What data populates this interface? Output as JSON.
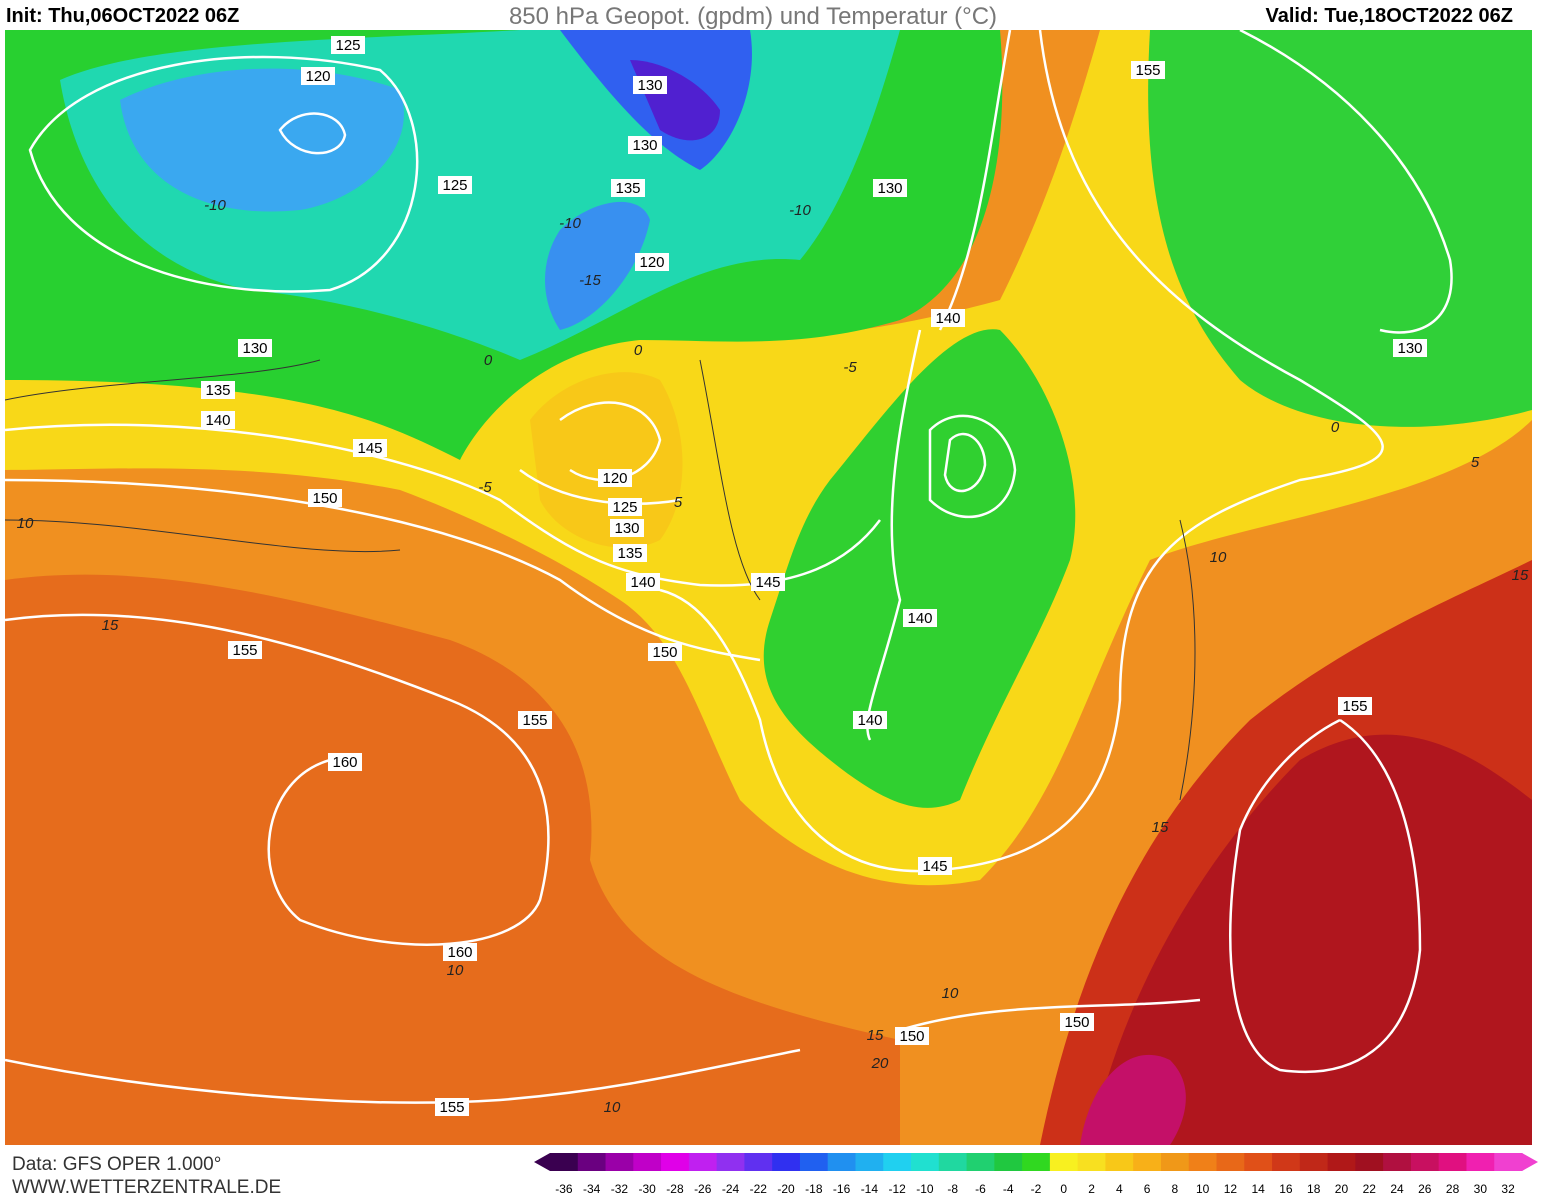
{
  "header": {
    "init": "Init: Thu,06OCT2022 06Z",
    "title": "850 hPa Geopot. (gpdm) und Temperatur (°C)",
    "valid": "Valid: Tue,18OCT2022 06Z"
  },
  "map": {
    "geopotential_labels": [
      125,
      120,
      130,
      130,
      135,
      125,
      130,
      120,
      155,
      140,
      130,
      135,
      140,
      145,
      150,
      120,
      125,
      130,
      135,
      140,
      145,
      140,
      150,
      155,
      155,
      140,
      160,
      155,
      145,
      160,
      150,
      150,
      155,
      130
    ],
    "temperature_labels": [
      -10,
      -10,
      -10,
      -15,
      -5,
      0,
      0,
      -5,
      5,
      0,
      5,
      10,
      15,
      10,
      15,
      10,
      10,
      15,
      20,
      10,
      15
    ]
  },
  "footer": {
    "data_source": "Data: GFS OPER 1.000°",
    "website": "WWW.WETTERZENTRALE.DE"
  },
  "color_scale": {
    "labels": [
      -36,
      -34,
      -32,
      -30,
      -28,
      -26,
      -24,
      -22,
      -20,
      -18,
      -16,
      -14,
      -12,
      -10,
      -8,
      -6,
      -4,
      -2,
      0,
      2,
      4,
      6,
      8,
      10,
      12,
      14,
      16,
      18,
      20,
      22,
      24,
      26,
      28,
      30,
      32
    ],
    "colors": [
      "#3a0050",
      "#6a0080",
      "#9a00a8",
      "#c000c8",
      "#e000e8",
      "#c020f0",
      "#9030f0",
      "#6030f0",
      "#3030f0",
      "#2060f0",
      "#2090f0",
      "#20b0f0",
      "#20d0f0",
      "#20e0d0",
      "#20d8a0",
      "#20d070",
      "#20c840",
      "#30d820",
      "#f8f020",
      "#f8e020",
      "#f8c818",
      "#f8b018",
      "#f09818",
      "#f08018",
      "#e86818",
      "#e05018",
      "#d03818",
      "#c02818",
      "#b01818",
      "#a01020",
      "#b01040",
      "#c81060",
      "#e01080",
      "#f020b0",
      "#f040d0"
    ]
  }
}
